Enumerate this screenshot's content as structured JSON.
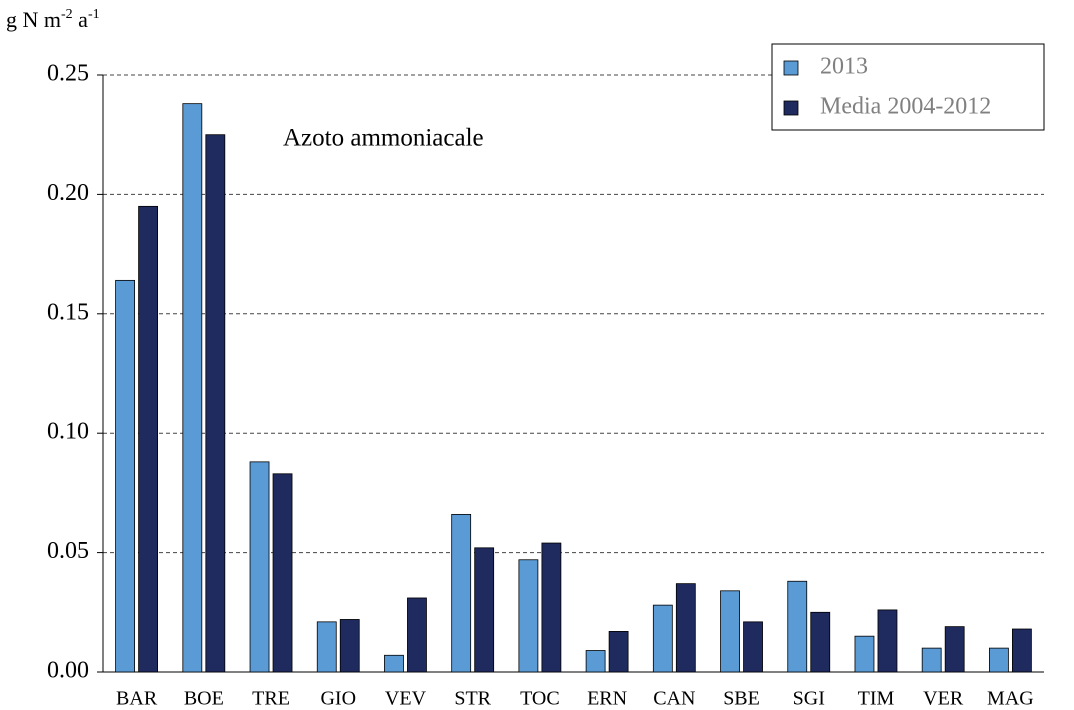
{
  "chart_data": {
    "type": "bar",
    "y_label": [
      "g N m",
      "-2",
      " a",
      "-1"
    ],
    "annotation": "Azoto ammoniacale",
    "categories": [
      "BAR",
      "BOE",
      "TRE",
      "GIO",
      "VEV",
      "STR",
      "TOC",
      "ERN",
      "CAN",
      "SBE",
      "SGI",
      "TIM",
      "VER",
      "MAG"
    ],
    "series": [
      {
        "name": "2013",
        "color": "#5b9bd5",
        "values": [
          0.164,
          0.238,
          0.088,
          0.021,
          0.007,
          0.066,
          0.047,
          0.009,
          0.028,
          0.034,
          0.038,
          0.015,
          0.01,
          0.01
        ]
      },
      {
        "name": "Media 2004-2012",
        "color": "#1f2a5e",
        "values": [
          0.195,
          0.225,
          0.083,
          0.022,
          0.031,
          0.052,
          0.054,
          0.017,
          0.037,
          0.021,
          0.025,
          0.026,
          0.019,
          0.018
        ]
      }
    ],
    "ylim": [
      0,
      0.25
    ],
    "yticks": [
      {
        "value": 0,
        "label": "0.00"
      },
      {
        "value": 0.05,
        "label": "0.05"
      },
      {
        "value": 0.1,
        "label": "0.10"
      },
      {
        "value": 0.15,
        "label": "0.15"
      },
      {
        "value": 0.2,
        "label": "0.20"
      },
      {
        "value": 0.25,
        "label": "0.25"
      }
    ],
    "grid": true,
    "legend": "top-right"
  }
}
